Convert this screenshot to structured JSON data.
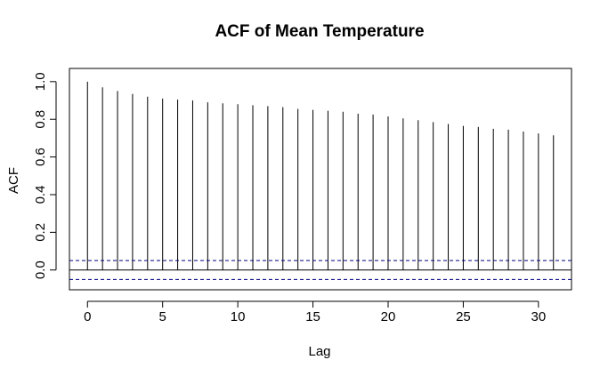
{
  "chart_data": {
    "type": "bar",
    "title": "ACF of Mean Temperature",
    "xlabel": "Lag",
    "ylabel": "ACF",
    "xlim": [
      -1.2,
      32.2
    ],
    "ylim": [
      -0.105,
      1.07
    ],
    "x_ticks": [
      0,
      5,
      10,
      15,
      20,
      25,
      30
    ],
    "x_tick_labels": [
      "0",
      "5",
      "10",
      "15",
      "20",
      "25",
      "30"
    ],
    "y_ticks": [
      0.0,
      0.2,
      0.4,
      0.6,
      0.8,
      1.0
    ],
    "y_tick_labels": [
      "0.0",
      "0.2",
      "0.4",
      "0.6",
      "0.8",
      "1.0"
    ],
    "grid": false,
    "series": [
      {
        "lags": [
          0,
          1,
          2,
          3,
          4,
          5,
          6,
          7,
          8,
          9,
          10,
          11,
          12,
          13,
          14,
          15,
          16,
          17,
          18,
          19,
          20,
          21,
          22,
          23,
          24,
          25,
          26,
          27,
          28,
          29,
          30,
          31
        ],
        "values": [
          1.0,
          0.97,
          0.95,
          0.935,
          0.92,
          0.91,
          0.905,
          0.9,
          0.89,
          0.885,
          0.88,
          0.875,
          0.87,
          0.865,
          0.855,
          0.85,
          0.845,
          0.84,
          0.83,
          0.825,
          0.815,
          0.805,
          0.795,
          0.785,
          0.775,
          0.765,
          0.76,
          0.75,
          0.745,
          0.735,
          0.725,
          0.715
        ]
      }
    ],
    "confidence_bounds": [
      0.05,
      -0.05
    ],
    "colors": {
      "bars": "#000000",
      "ci": "#000080",
      "zero_line": "#000000",
      "frame": "#000000"
    }
  }
}
